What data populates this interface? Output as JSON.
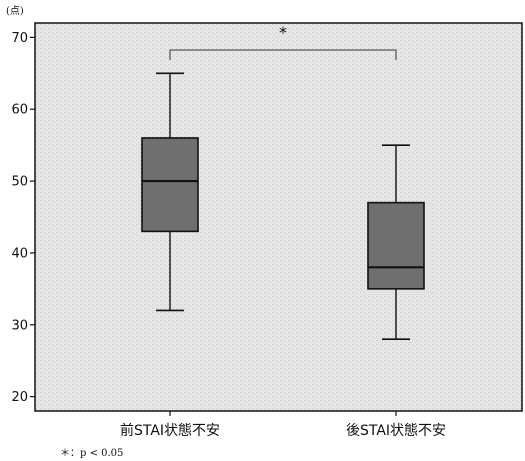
{
  "chart_data": {
    "type": "box",
    "y_unit": "(点)",
    "ylim": [
      18,
      72
    ],
    "yticks": [
      20,
      30,
      40,
      50,
      60,
      70
    ],
    "categories": [
      "前STAI状態不安",
      "後STAI状態不安"
    ],
    "boxes": [
      {
        "min": 32,
        "q1": 43,
        "median": 50,
        "q3": 56,
        "max": 65
      },
      {
        "min": 28,
        "q1": 35,
        "median": 38,
        "q3": 47,
        "max": 55
      }
    ],
    "significance": {
      "between": [
        0,
        1
      ],
      "symbol": "*"
    },
    "note": "＊：p < 0.05",
    "grid": false,
    "colors": {
      "plot_background": "#e9e9e9",
      "box_fill": "#6f6f6f",
      "stroke": "#111111"
    }
  }
}
